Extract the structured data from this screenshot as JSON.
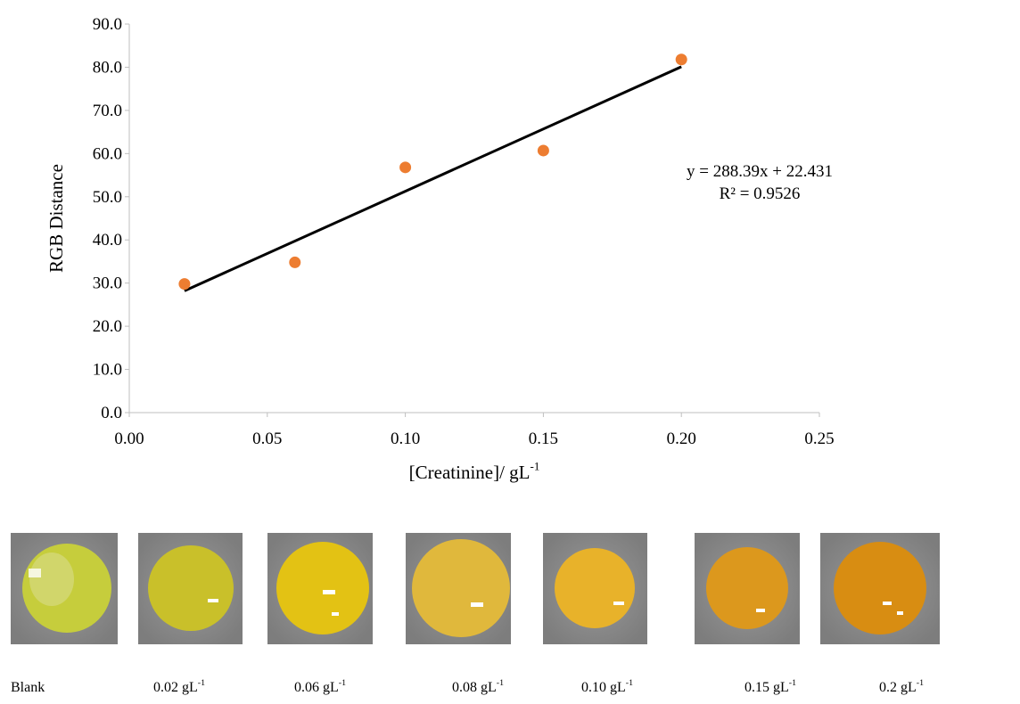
{
  "chart_data": {
    "type": "scatter",
    "x_label": {
      "text": "[Creatinine]/ gL",
      "sup": "-1"
    },
    "y_label": "RGB Distance",
    "x": [
      0.02,
      0.06,
      0.1,
      0.15,
      0.2
    ],
    "values": [
      29.8,
      34.8,
      56.8,
      60.7,
      81.8
    ],
    "color": "#ed7d31",
    "xlim": [
      0,
      0.25
    ],
    "xticks": [
      {
        "value": 0,
        "label": "0.00"
      },
      {
        "value": 0.05,
        "label": "0.05"
      },
      {
        "value": 0.1,
        "label": "0.10"
      },
      {
        "value": 0.15,
        "label": "0.15"
      },
      {
        "value": 0.2,
        "label": "0.20"
      },
      {
        "value": 0.25,
        "label": "0.25"
      }
    ],
    "ylim": [
      0,
      90
    ],
    "yticks": [
      {
        "value": 0,
        "label": "0.0"
      },
      {
        "value": 10,
        "label": "10.0"
      },
      {
        "value": 20,
        "label": "20.0"
      },
      {
        "value": 30,
        "label": "30.0"
      },
      {
        "value": 40,
        "label": "40.0"
      },
      {
        "value": 50,
        "label": "50.0"
      },
      {
        "value": 60,
        "label": "60.0"
      },
      {
        "value": 70,
        "label": "70.0"
      },
      {
        "value": 80,
        "label": "80.0"
      },
      {
        "value": 90,
        "label": "90.0"
      }
    ],
    "trendline": {
      "slope": 288.39,
      "intercept": 22.431,
      "equation": "y = 288.39x + 22.431",
      "r2": "R² = 0.9526"
    }
  },
  "sample_labels": [
    {
      "text": "Blank"
    },
    {
      "text": "0.02 gL",
      "sup": "-1"
    },
    {
      "text": "0.06 gL",
      "sup": "-1"
    },
    {
      "text": "0.08 gL",
      "sup": "-1"
    },
    {
      "text": "0.10 gL",
      "sup": "-1"
    },
    {
      "text": "0.15 gL",
      "sup": "-1"
    },
    {
      "text": "0.2 gL",
      "sup": "-1"
    }
  ]
}
